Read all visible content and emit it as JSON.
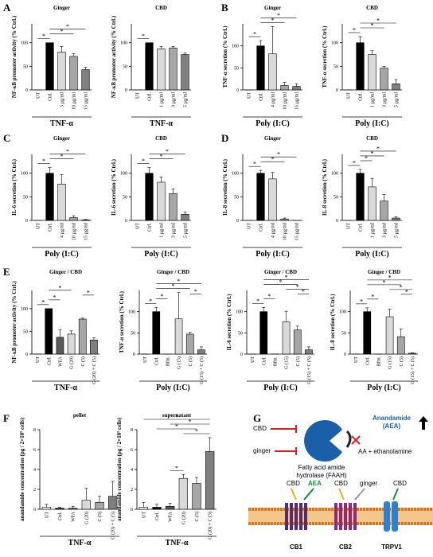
{
  "panel_letters": [
    "A",
    "B",
    "C",
    "D",
    "E",
    "F",
    "G"
  ],
  "chart_data": [
    {
      "type": "bar",
      "title": "Ginger",
      "ylabel": "NF-κB promoter activity (% Ctrl.)",
      "xlabel": "TNF-α",
      "categories": [
        "UT",
        "Ctrl.",
        "5 µg/ml",
        "10 µg/ml",
        "15 µg/ml"
      ],
      "values": [
        0,
        100,
        80,
        71,
        43
      ],
      "errors": [
        0,
        0,
        12,
        6,
        5
      ],
      "colors": [
        "#ffffff",
        "#000000",
        "#d9d9d9",
        "#a6a6a6",
        "#7f7f7f"
      ],
      "ylim": [
        0,
        140
      ],
      "yticks": [
        0,
        50,
        100
      ],
      "significance": [
        {
          "from": 0,
          "to": 1,
          "label": "*"
        },
        {
          "from": 1,
          "to": 3,
          "label": "*"
        },
        {
          "from": 1,
          "to": 4,
          "label": "*"
        }
      ]
    },
    {
      "type": "bar",
      "title": "CBD",
      "ylabel": "NF-κB promoter activity (% Ctrl.)",
      "xlabel": "TNF-α",
      "categories": [
        "UT",
        "Ctrl.",
        "1 µg/ml",
        "3 µg/ml",
        "5 µg/ml"
      ],
      "values": [
        0,
        100,
        87,
        89,
        75
      ],
      "errors": [
        0,
        0,
        5,
        3,
        3
      ],
      "colors": [
        "#ffffff",
        "#000000",
        "#d9d9d9",
        "#a6a6a6",
        "#7f7f7f"
      ],
      "ylim": [
        0,
        140
      ],
      "yticks": [
        0,
        50,
        100
      ],
      "significance": [
        {
          "from": 0,
          "to": 1,
          "label": "*"
        }
      ]
    },
    {
      "type": "bar",
      "title": "Ginger",
      "ylabel": "TNF-α secretion (% Ctrl.)",
      "xlabel": "Poly (I:C)",
      "categories": [
        "UT",
        "Ctrl.",
        "4 µg/ml",
        "10 µg/ml",
        "15 µg/ml"
      ],
      "values": [
        0,
        100,
        82,
        10,
        8
      ],
      "errors": [
        0,
        12,
        62,
        7,
        6
      ],
      "colors": [
        "#ffffff",
        "#000000",
        "#d9d9d9",
        "#a6a6a6",
        "#7f7f7f"
      ],
      "ylim": [
        0,
        150
      ],
      "yticks": [
        0,
        50,
        100
      ],
      "significance": [
        {
          "from": 0,
          "to": 1,
          "label": "*"
        },
        {
          "from": 1,
          "to": 3,
          "label": "*"
        },
        {
          "from": 1,
          "to": 4,
          "label": "*"
        }
      ]
    },
    {
      "type": "bar",
      "title": "CBD",
      "ylabel": "TNF-α secretion (% Ctrl.)",
      "xlabel": "Poly (I:C)",
      "categories": [
        "UT",
        "Ctrl.",
        "1 µg/ml",
        "3 µg/ml",
        "5 µg/ml"
      ],
      "values": [
        0,
        100,
        75,
        46,
        13
      ],
      "errors": [
        0,
        13,
        8,
        4,
        9
      ],
      "colors": [
        "#ffffff",
        "#000000",
        "#d9d9d9",
        "#a6a6a6",
        "#7f7f7f"
      ],
      "ylim": [
        0,
        140
      ],
      "yticks": [
        0,
        50,
        100
      ],
      "significance": [
        {
          "from": 0,
          "to": 1,
          "label": "*"
        },
        {
          "from": 1,
          "to": 3,
          "label": "*"
        },
        {
          "from": 1,
          "to": 4,
          "label": "*"
        }
      ]
    },
    {
      "type": "bar",
      "title": "Ginger",
      "ylabel": "IL-6 secretion (% Ctrl.)",
      "xlabel": "Poly (I:C)",
      "categories": [
        "UT",
        "Ctrl.",
        "4 µg/ml",
        "10 µg/ml",
        "15 µg/ml"
      ],
      "values": [
        0,
        100,
        77,
        6,
        1
      ],
      "errors": [
        0,
        12,
        20,
        4,
        1
      ],
      "colors": [
        "#ffffff",
        "#000000",
        "#d9d9d9",
        "#a6a6a6",
        "#7f7f7f"
      ],
      "ylim": [
        0,
        140
      ],
      "yticks": [
        0,
        50,
        100
      ],
      "significance": [
        {
          "from": 0,
          "to": 1,
          "label": "*"
        },
        {
          "from": 1,
          "to": 3,
          "label": "*"
        },
        {
          "from": 1,
          "to": 4,
          "label": "*"
        }
      ]
    },
    {
      "type": "bar",
      "title": "CBD",
      "ylabel": "IL-6 secretion (% Ctrl.)",
      "xlabel": "Poly (I:C)",
      "categories": [
        "UT",
        "Ctrl.",
        "1 µg/ml",
        "3 µg/ml",
        "5 µg/ml"
      ],
      "values": [
        0,
        100,
        81,
        57,
        13
      ],
      "errors": [
        0,
        12,
        11,
        10,
        5
      ],
      "colors": [
        "#ffffff",
        "#000000",
        "#d9d9d9",
        "#a6a6a6",
        "#7f7f7f"
      ],
      "ylim": [
        0,
        140
      ],
      "yticks": [
        0,
        50,
        100
      ],
      "significance": [
        {
          "from": 0,
          "to": 1,
          "label": "*"
        },
        {
          "from": 1,
          "to": 3,
          "label": "*"
        },
        {
          "from": 1,
          "to": 4,
          "label": "*"
        }
      ]
    },
    {
      "type": "bar",
      "title": "Ginger",
      "ylabel": "IL-8 secretion (% Ctrl.)",
      "xlabel": "Poly (I:C)",
      "categories": [
        "UT",
        "Ctrl.",
        "4 µg/ml",
        "10 µg/ml",
        "15 µg/ml"
      ],
      "values": [
        0,
        100,
        88,
        3,
        0
      ],
      "errors": [
        0,
        6,
        14,
        2,
        0
      ],
      "colors": [
        "#ffffff",
        "#000000",
        "#d9d9d9",
        "#a6a6a6",
        "#7f7f7f"
      ],
      "ylim": [
        0,
        140
      ],
      "yticks": [
        0,
        50,
        100
      ],
      "significance": [
        {
          "from": 0,
          "to": 1,
          "label": "*"
        },
        {
          "from": 1,
          "to": 3,
          "label": "*"
        },
        {
          "from": 1,
          "to": 4,
          "label": "*"
        }
      ]
    },
    {
      "type": "bar",
      "title": "CBD",
      "ylabel": "IL-8 secretion (% Ctrl.)",
      "xlabel": "Poly (I:C)",
      "categories": [
        "UT",
        "Ctrl.",
        "1 µg/ml",
        "3 µg/ml",
        "5 µg/ml"
      ],
      "values": [
        0,
        100,
        71,
        41,
        5
      ],
      "errors": [
        0,
        8,
        18,
        14,
        3
      ],
      "colors": [
        "#ffffff",
        "#000000",
        "#d9d9d9",
        "#a6a6a6",
        "#7f7f7f"
      ],
      "ylim": [
        0,
        140
      ],
      "yticks": [
        0,
        50,
        100
      ],
      "significance": [
        {
          "from": 0,
          "to": 1,
          "label": "*"
        },
        {
          "from": 1,
          "to": 2,
          "label": "*"
        },
        {
          "from": 1,
          "to": 3,
          "label": "*"
        },
        {
          "from": 1,
          "to": 4,
          "label": "*"
        }
      ]
    },
    {
      "type": "bar",
      "title": "Ginger / CBD",
      "ylabel": "NF-κB promoter activity (% Ctrl.)",
      "xlabel": "TNF-α",
      "categories": [
        "UT",
        "Ctrl.",
        "WFA",
        "G (20)",
        "C (5)",
        "G (20) + C (5)"
      ],
      "values": [
        0,
        100,
        37,
        44,
        77,
        31
      ],
      "errors": [
        0,
        0,
        16,
        7,
        2,
        5
      ],
      "colors": [
        "#ffffff",
        "#000000",
        "#595959",
        "#d9d9d9",
        "#a6a6a6",
        "#7f7f7f"
      ],
      "ylim": [
        0,
        140
      ],
      "yticks": [
        0,
        50,
        100
      ],
      "significance": [
        {
          "from": 0,
          "to": 1,
          "label": "*"
        },
        {
          "from": 1,
          "to": 2,
          "label": "*"
        },
        {
          "from": 4,
          "to": 5,
          "label": "*"
        },
        {
          "from": 1,
          "to": 3,
          "label": "*"
        }
      ]
    },
    {
      "type": "bar",
      "title": "Ginger / CBD",
      "ylabel": "TNF-α secretion (% Ctrl.)",
      "xlabel": "Poly (I:C)",
      "categories": [
        "UT",
        "Ctrl.",
        "Bftn.",
        "G (15)",
        "C (5)",
        "G (15) + C (5)"
      ],
      "values": [
        0,
        100,
        0,
        83,
        47,
        10
      ],
      "errors": [
        0,
        10,
        0,
        62,
        4,
        7
      ],
      "colors": [
        "#ffffff",
        "#000000",
        "#595959",
        "#d9d9d9",
        "#a6a6a6",
        "#7f7f7f"
      ],
      "ylim": [
        0,
        150
      ],
      "yticks": [
        0,
        50,
        100
      ],
      "significance": [
        {
          "from": 0,
          "to": 1,
          "label": "*"
        },
        {
          "from": 1,
          "to": 2,
          "label": "*"
        },
        {
          "from": 4,
          "to": 5,
          "label": "*"
        },
        {
          "from": 1,
          "to": 4,
          "label": "*"
        },
        {
          "from": 1,
          "to": 5,
          "label": "*"
        }
      ]
    },
    {
      "type": "bar",
      "title": "Ginger / CBD",
      "ylabel": "IL-6 secretion (% Ctrl.)",
      "xlabel": "Poly (I:C)",
      "categories": [
        "UT",
        "Ctrl.",
        "Bftn.",
        "G (15)",
        "C (5)",
        "G (15) + C (5)"
      ],
      "values": [
        0,
        100,
        0,
        76,
        57,
        10
      ],
      "errors": [
        0,
        10,
        0,
        25,
        9,
        7
      ],
      "colors": [
        "#ffffff",
        "#000000",
        "#595959",
        "#d9d9d9",
        "#a6a6a6",
        "#7f7f7f"
      ],
      "ylim": [
        0,
        150
      ],
      "yticks": [
        0,
        50,
        100
      ],
      "significance": [
        {
          "from": 0,
          "to": 1,
          "label": "*"
        },
        {
          "from": 1,
          "to": 2,
          "label": "*"
        },
        {
          "from": 4,
          "to": 5,
          "label": "*"
        },
        {
          "from": 3,
          "to": 5,
          "label": "*"
        },
        {
          "from": 1,
          "to": 4,
          "label": "*"
        },
        {
          "from": 1,
          "to": 5,
          "label": "*"
        }
      ]
    },
    {
      "type": "bar",
      "title": "Ginger / CBD",
      "ylabel": "IL-8 secretion (% Ctrl.)",
      "xlabel": "Poly (I:C)",
      "categories": [
        "UT",
        "Ctrl.",
        "Bftn.",
        "G (15)",
        "C (5)",
        "G (15) + C (5)"
      ],
      "values": [
        0,
        100,
        0,
        88,
        41,
        2
      ],
      "errors": [
        0,
        9,
        0,
        18,
        18,
        1
      ],
      "colors": [
        "#ffffff",
        "#000000",
        "#595959",
        "#d9d9d9",
        "#a6a6a6",
        "#7f7f7f"
      ],
      "ylim": [
        0,
        150
      ],
      "yticks": [
        0,
        50,
        100
      ],
      "significance": [
        {
          "from": 0,
          "to": 1,
          "label": "*"
        },
        {
          "from": 1,
          "to": 2,
          "label": "*"
        },
        {
          "from": 4,
          "to": 5,
          "label": "*"
        },
        {
          "from": 3,
          "to": 5,
          "label": "*"
        },
        {
          "from": 1,
          "to": 4,
          "label": "*"
        },
        {
          "from": 1,
          "to": 5,
          "label": "*"
        }
      ]
    },
    {
      "type": "bar",
      "title": "pellet",
      "ylabel": "anandamide concentration (pg / 2×10⁵ cells)",
      "xlabel": "TNF-α",
      "categories": [
        "UT",
        "Ctrl.",
        "WFA",
        "G (20)",
        "C (5)",
        "G (20) + C (5)"
      ],
      "values": [
        0.2,
        0.1,
        0.1,
        0.9,
        0.7,
        1.3
      ],
      "errors": [
        0.3,
        0.1,
        0.2,
        1.2,
        0.6,
        1.5
      ],
      "colors": [
        "#ffffff",
        "#000000",
        "#595959",
        "#d9d9d9",
        "#a6a6a6",
        "#7f7f7f"
      ],
      "ylim": [
        0,
        8
      ],
      "yticks": [
        0,
        2,
        4,
        6,
        8
      ],
      "significance": []
    },
    {
      "type": "bar",
      "title": "supernatant",
      "ylabel": "anandamide concentration (pg / 2×10⁵ cells)",
      "xlabel": "TNF-α",
      "categories": [
        "UT",
        "Ctrl.",
        "WFA",
        "G (20)",
        "C (5)",
        "G (20) + C (5)"
      ],
      "values": [
        0.2,
        0.2,
        0.3,
        3.1,
        2.6,
        5.8
      ],
      "errors": [
        0.5,
        0.3,
        0.3,
        0.4,
        0.6,
        1.4
      ],
      "colors": [
        "#ffffff",
        "#000000",
        "#595959",
        "#d9d9d9",
        "#a6a6a6",
        "#7f7f7f"
      ],
      "ylim": [
        0,
        8
      ],
      "yticks": [
        0,
        2,
        4,
        6,
        8
      ],
      "significance": [
        {
          "from": 2,
          "to": 3,
          "label": "*"
        },
        {
          "from": 3,
          "to": 5,
          "label": "*"
        },
        {
          "from": 1,
          "to": 4,
          "label": "*"
        },
        {
          "from": 2,
          "to": 5,
          "label": "*"
        },
        {
          "from": 0,
          "to": 5,
          "label": "*"
        }
      ]
    }
  ],
  "diagram": {
    "inhibitors": [
      "CBD",
      "ginger"
    ],
    "enzyme": [
      "Fatty acid amide",
      "hydrolase (FAAH)"
    ],
    "substrate": [
      "Anandamide",
      "(AEA)"
    ],
    "product": "AA + ethanolamine",
    "ligands": [
      "CBD",
      "AEA",
      "CBD",
      "ginger",
      "CBD"
    ],
    "receptors": [
      "CB1",
      "CB2",
      "TRPV1"
    ]
  }
}
